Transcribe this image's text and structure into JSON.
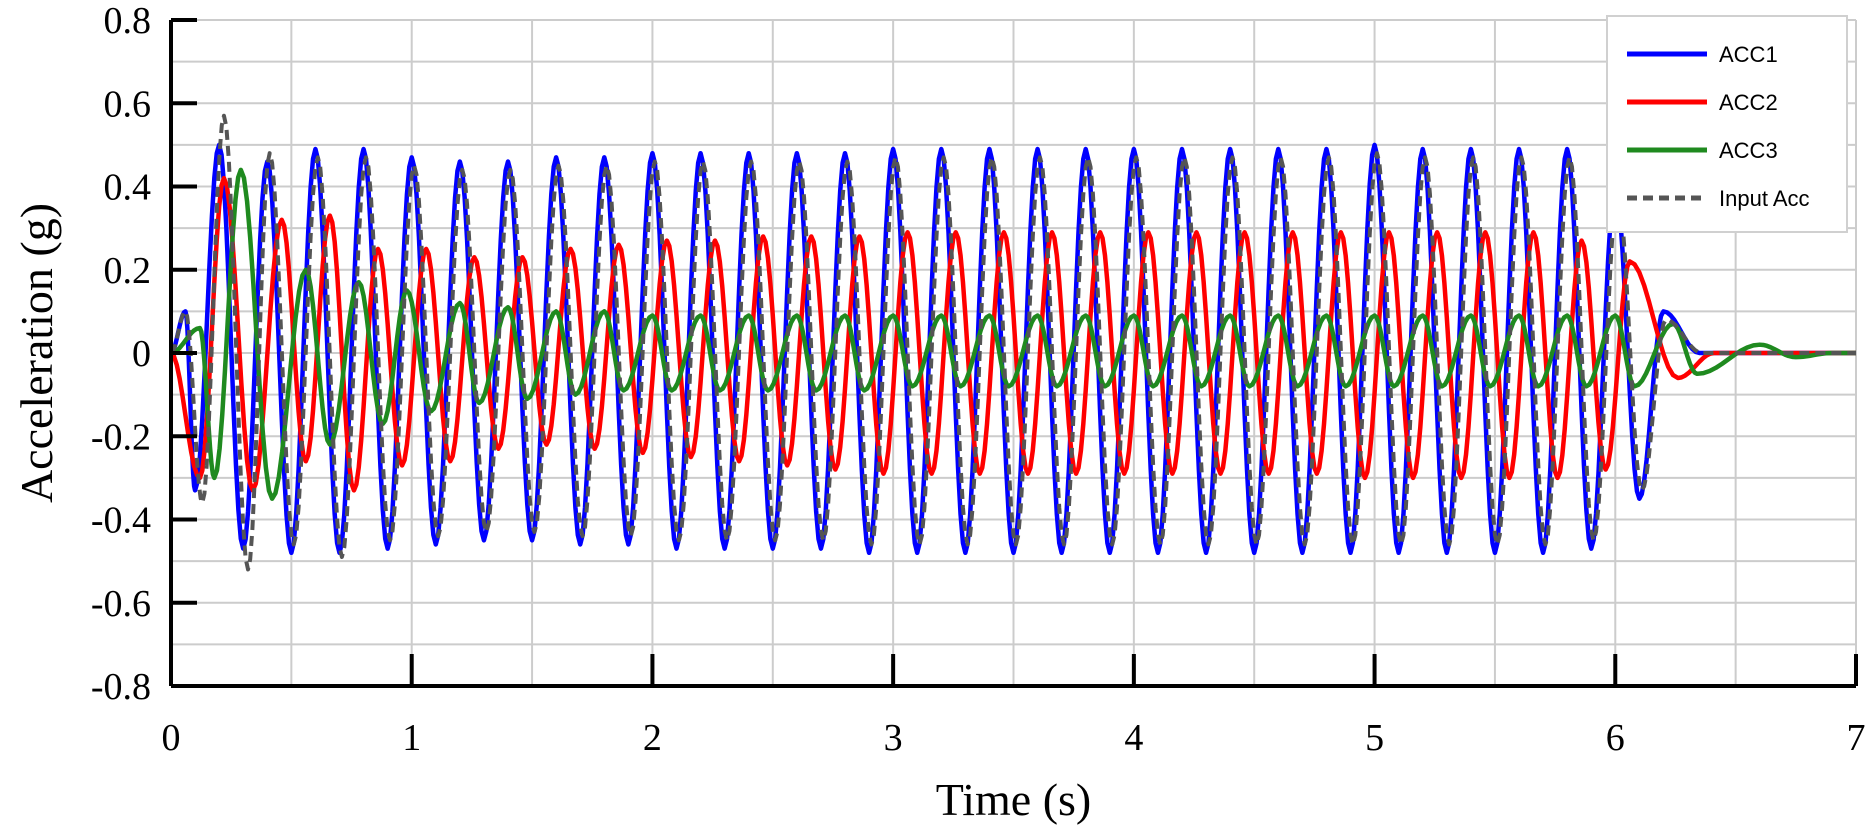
{
  "chart_data": {
    "type": "line",
    "title": "",
    "xlabel": "Time (s)",
    "ylabel": "Acceleration (g)",
    "xlim": [
      0,
      7
    ],
    "ylim": [
      -0.8,
      0.8
    ],
    "x_ticks": [
      "0",
      "1",
      "2",
      "3",
      "4",
      "5",
      "6",
      "7"
    ],
    "y_ticks": [
      "-0.8",
      "-0.6",
      "-0.4",
      "-0.2",
      "0",
      "0.2",
      "0.4",
      "0.6",
      "0.8"
    ],
    "x_minor_step": 0.5,
    "y_minor_step": 0.1,
    "grid": true,
    "legend_position": "top-right",
    "series": [
      {
        "name": "ACC1",
        "color": "#0000ff",
        "style": "solid",
        "frequency_hz": 5,
        "peaks": [
          [
            0.06,
            0.1
          ],
          [
            0.2,
            0.5
          ],
          [
            0.4,
            0.46
          ],
          [
            0.6,
            0.49
          ],
          [
            0.8,
            0.49
          ],
          [
            1.0,
            0.47
          ],
          [
            1.2,
            0.46
          ],
          [
            1.4,
            0.46
          ],
          [
            1.6,
            0.47
          ],
          [
            1.8,
            0.47
          ],
          [
            2.0,
            0.48
          ],
          [
            2.2,
            0.48
          ],
          [
            2.4,
            0.48
          ],
          [
            2.6,
            0.48
          ],
          [
            2.8,
            0.48
          ],
          [
            3.0,
            0.49
          ],
          [
            3.2,
            0.49
          ],
          [
            3.4,
            0.49
          ],
          [
            3.6,
            0.49
          ],
          [
            3.8,
            0.49
          ],
          [
            4.0,
            0.49
          ],
          [
            4.2,
            0.49
          ],
          [
            4.4,
            0.49
          ],
          [
            4.6,
            0.49
          ],
          [
            4.8,
            0.49
          ],
          [
            5.0,
            0.5
          ],
          [
            5.2,
            0.49
          ],
          [
            5.4,
            0.49
          ],
          [
            5.6,
            0.49
          ],
          [
            5.8,
            0.49
          ],
          [
            6.0,
            0.4
          ],
          [
            6.2,
            0.1
          ]
        ],
        "troughs": [
          [
            0.1,
            -0.33
          ],
          [
            0.3,
            -0.47
          ],
          [
            0.5,
            -0.48
          ],
          [
            0.7,
            -0.48
          ],
          [
            0.9,
            -0.47
          ],
          [
            1.1,
            -0.46
          ],
          [
            1.3,
            -0.45
          ],
          [
            1.5,
            -0.45
          ],
          [
            1.7,
            -0.46
          ],
          [
            1.9,
            -0.46
          ],
          [
            2.1,
            -0.47
          ],
          [
            2.3,
            -0.47
          ],
          [
            2.5,
            -0.47
          ],
          [
            2.7,
            -0.47
          ],
          [
            2.9,
            -0.48
          ],
          [
            3.1,
            -0.48
          ],
          [
            3.3,
            -0.48
          ],
          [
            3.5,
            -0.48
          ],
          [
            3.7,
            -0.48
          ],
          [
            3.9,
            -0.48
          ],
          [
            4.1,
            -0.48
          ],
          [
            4.3,
            -0.48
          ],
          [
            4.5,
            -0.48
          ],
          [
            4.7,
            -0.48
          ],
          [
            4.9,
            -0.48
          ],
          [
            5.1,
            -0.48
          ],
          [
            5.3,
            -0.48
          ],
          [
            5.5,
            -0.48
          ],
          [
            5.7,
            -0.48
          ],
          [
            5.9,
            -0.47
          ],
          [
            6.1,
            -0.35
          ]
        ]
      },
      {
        "name": "ACC2",
        "color": "#ff0000",
        "style": "solid",
        "frequency_hz": 5,
        "peaks": [
          [
            0.22,
            0.42
          ],
          [
            0.46,
            0.32
          ],
          [
            0.66,
            0.33
          ],
          [
            0.86,
            0.25
          ],
          [
            1.06,
            0.25
          ],
          [
            1.26,
            0.23
          ],
          [
            1.46,
            0.23
          ],
          [
            1.66,
            0.25
          ],
          [
            1.86,
            0.26
          ],
          [
            2.06,
            0.27
          ],
          [
            2.26,
            0.27
          ],
          [
            2.46,
            0.28
          ],
          [
            2.66,
            0.28
          ],
          [
            2.86,
            0.28
          ],
          [
            3.06,
            0.29
          ],
          [
            3.26,
            0.29
          ],
          [
            3.46,
            0.29
          ],
          [
            3.66,
            0.29
          ],
          [
            3.86,
            0.29
          ],
          [
            4.06,
            0.29
          ],
          [
            4.26,
            0.29
          ],
          [
            4.46,
            0.29
          ],
          [
            4.66,
            0.29
          ],
          [
            4.86,
            0.29
          ],
          [
            5.06,
            0.29
          ],
          [
            5.26,
            0.29
          ],
          [
            5.46,
            0.29
          ],
          [
            5.66,
            0.29
          ],
          [
            5.86,
            0.27
          ],
          [
            6.06,
            0.22
          ]
        ],
        "troughs": [
          [
            0.12,
            -0.3
          ],
          [
            0.34,
            -0.33
          ],
          [
            0.56,
            -0.26
          ],
          [
            0.76,
            -0.33
          ],
          [
            0.96,
            -0.27
          ],
          [
            1.16,
            -0.26
          ],
          [
            1.36,
            -0.23
          ],
          [
            1.56,
            -0.22
          ],
          [
            1.76,
            -0.23
          ],
          [
            1.96,
            -0.24
          ],
          [
            2.16,
            -0.25
          ],
          [
            2.36,
            -0.26
          ],
          [
            2.56,
            -0.27
          ],
          [
            2.76,
            -0.28
          ],
          [
            2.96,
            -0.29
          ],
          [
            3.16,
            -0.29
          ],
          [
            3.36,
            -0.29
          ],
          [
            3.56,
            -0.29
          ],
          [
            3.76,
            -0.29
          ],
          [
            3.96,
            -0.29
          ],
          [
            4.16,
            -0.29
          ],
          [
            4.36,
            -0.29
          ],
          [
            4.56,
            -0.29
          ],
          [
            4.76,
            -0.29
          ],
          [
            4.96,
            -0.3
          ],
          [
            5.16,
            -0.3
          ],
          [
            5.36,
            -0.3
          ],
          [
            5.56,
            -0.3
          ],
          [
            5.76,
            -0.3
          ],
          [
            5.96,
            -0.28
          ],
          [
            6.26,
            -0.06
          ]
        ]
      },
      {
        "name": "ACC3",
        "color": "#1f8a1f",
        "style": "solid",
        "frequency_hz": 5,
        "peaks": [
          [
            0.12,
            0.06
          ],
          [
            0.29,
            0.44
          ],
          [
            0.56,
            0.2
          ],
          [
            0.78,
            0.17
          ],
          [
            0.98,
            0.15
          ],
          [
            1.2,
            0.12
          ],
          [
            1.4,
            0.11
          ],
          [
            1.6,
            0.1
          ],
          [
            1.8,
            0.1
          ],
          [
            2.0,
            0.09
          ],
          [
            2.2,
            0.09
          ],
          [
            2.4,
            0.09
          ],
          [
            2.6,
            0.09
          ],
          [
            2.8,
            0.09
          ],
          [
            3.0,
            0.09
          ],
          [
            3.2,
            0.09
          ],
          [
            3.4,
            0.09
          ],
          [
            3.6,
            0.09
          ],
          [
            3.8,
            0.09
          ],
          [
            4.0,
            0.09
          ],
          [
            4.2,
            0.09
          ],
          [
            4.4,
            0.09
          ],
          [
            4.6,
            0.09
          ],
          [
            4.8,
            0.09
          ],
          [
            5.0,
            0.09
          ],
          [
            5.2,
            0.09
          ],
          [
            5.4,
            0.09
          ],
          [
            5.6,
            0.09
          ],
          [
            5.8,
            0.09
          ],
          [
            6.0,
            0.09
          ],
          [
            6.24,
            0.07
          ],
          [
            6.6,
            0.02
          ]
        ],
        "troughs": [
          [
            0.18,
            -0.3
          ],
          [
            0.42,
            -0.35
          ],
          [
            0.66,
            -0.22
          ],
          [
            0.88,
            -0.17
          ],
          [
            1.08,
            -0.14
          ],
          [
            1.28,
            -0.12
          ],
          [
            1.48,
            -0.11
          ],
          [
            1.68,
            -0.1
          ],
          [
            1.88,
            -0.09
          ],
          [
            2.08,
            -0.09
          ],
          [
            2.28,
            -0.09
          ],
          [
            2.48,
            -0.09
          ],
          [
            2.68,
            -0.09
          ],
          [
            2.88,
            -0.09
          ],
          [
            3.08,
            -0.08
          ],
          [
            3.28,
            -0.08
          ],
          [
            3.48,
            -0.08
          ],
          [
            3.68,
            -0.08
          ],
          [
            3.88,
            -0.08
          ],
          [
            4.08,
            -0.08
          ],
          [
            4.28,
            -0.08
          ],
          [
            4.48,
            -0.08
          ],
          [
            4.68,
            -0.08
          ],
          [
            4.88,
            -0.08
          ],
          [
            5.08,
            -0.08
          ],
          [
            5.28,
            -0.08
          ],
          [
            5.48,
            -0.08
          ],
          [
            5.68,
            -0.08
          ],
          [
            5.88,
            -0.08
          ],
          [
            6.08,
            -0.08
          ],
          [
            6.34,
            -0.05
          ],
          [
            6.75,
            -0.01
          ]
        ]
      },
      {
        "name": "Input Acc",
        "color": "#555555",
        "style": "dashed",
        "frequency_hz": 5,
        "peaks": [
          [
            0.06,
            0.1
          ],
          [
            0.22,
            0.57
          ],
          [
            0.41,
            0.48
          ],
          [
            0.61,
            0.47
          ],
          [
            0.81,
            0.47
          ],
          [
            1.01,
            0.45
          ],
          [
            1.21,
            0.44
          ],
          [
            1.41,
            0.44
          ],
          [
            1.61,
            0.45
          ],
          [
            1.81,
            0.45
          ],
          [
            2.01,
            0.46
          ],
          [
            2.21,
            0.46
          ],
          [
            2.41,
            0.46
          ],
          [
            2.61,
            0.46
          ],
          [
            2.81,
            0.46
          ],
          [
            3.01,
            0.47
          ],
          [
            3.21,
            0.47
          ],
          [
            3.41,
            0.47
          ],
          [
            3.61,
            0.47
          ],
          [
            3.81,
            0.47
          ],
          [
            4.01,
            0.47
          ],
          [
            4.21,
            0.47
          ],
          [
            4.41,
            0.47
          ],
          [
            4.61,
            0.47
          ],
          [
            4.81,
            0.47
          ],
          [
            5.01,
            0.48
          ],
          [
            5.21,
            0.47
          ],
          [
            5.41,
            0.47
          ],
          [
            5.61,
            0.47
          ],
          [
            5.81,
            0.47
          ],
          [
            6.01,
            0.38
          ],
          [
            6.21,
            0.08
          ]
        ],
        "troughs": [
          [
            0.13,
            -0.36
          ],
          [
            0.32,
            -0.52
          ],
          [
            0.51,
            -0.46
          ],
          [
            0.71,
            -0.49
          ],
          [
            0.91,
            -0.45
          ],
          [
            1.11,
            -0.44
          ],
          [
            1.31,
            -0.43
          ],
          [
            1.51,
            -0.43
          ],
          [
            1.71,
            -0.44
          ],
          [
            1.91,
            -0.44
          ],
          [
            2.11,
            -0.45
          ],
          [
            2.31,
            -0.45
          ],
          [
            2.51,
            -0.45
          ],
          [
            2.71,
            -0.45
          ],
          [
            2.91,
            -0.46
          ],
          [
            3.11,
            -0.46
          ],
          [
            3.31,
            -0.46
          ],
          [
            3.51,
            -0.46
          ],
          [
            3.71,
            -0.46
          ],
          [
            3.91,
            -0.46
          ],
          [
            4.11,
            -0.46
          ],
          [
            4.31,
            -0.46
          ],
          [
            4.51,
            -0.46
          ],
          [
            4.71,
            -0.46
          ],
          [
            4.91,
            -0.46
          ],
          [
            5.11,
            -0.46
          ],
          [
            5.31,
            -0.46
          ],
          [
            5.51,
            -0.46
          ],
          [
            5.71,
            -0.46
          ],
          [
            5.91,
            -0.45
          ],
          [
            6.11,
            -0.33
          ]
        ]
      }
    ]
  }
}
